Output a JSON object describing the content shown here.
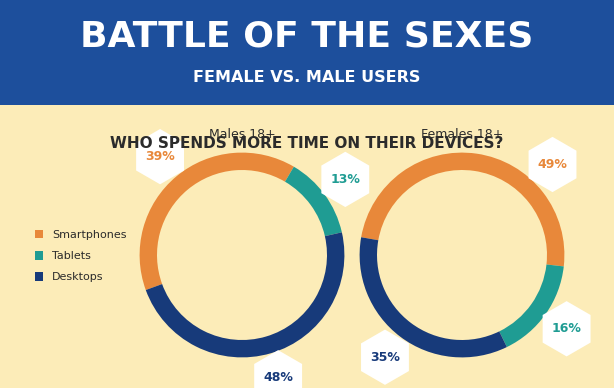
{
  "title": "BATTLE OF THE SEXES",
  "subtitle": "FEMALE VS. MALE USERS",
  "heading": "WHO SPENDS MORE TIME ON THEIR DEVICES?",
  "chart_data": [
    {
      "type": "pie",
      "title": "Males 18+",
      "categories": [
        "Smartphones",
        "Tablets",
        "Desktops"
      ],
      "values": [
        39,
        13,
        48
      ],
      "value_labels": [
        "39%",
        "13%",
        "48%"
      ],
      "colors": [
        "#e8883a",
        "#1f9c93",
        "#173a7a"
      ],
      "data_labels": true,
      "legend": "center left"
    },
    {
      "type": "pie",
      "title": "Females 18+",
      "categories": [
        "Smartphones",
        "Tablets",
        "Desktops"
      ],
      "values": [
        49,
        16,
        35
      ],
      "value_labels": [
        "49%",
        "16%",
        "35%"
      ],
      "colors": [
        "#e8883a",
        "#1f9c93",
        "#173a7a"
      ],
      "data_labels": true
    }
  ]
}
